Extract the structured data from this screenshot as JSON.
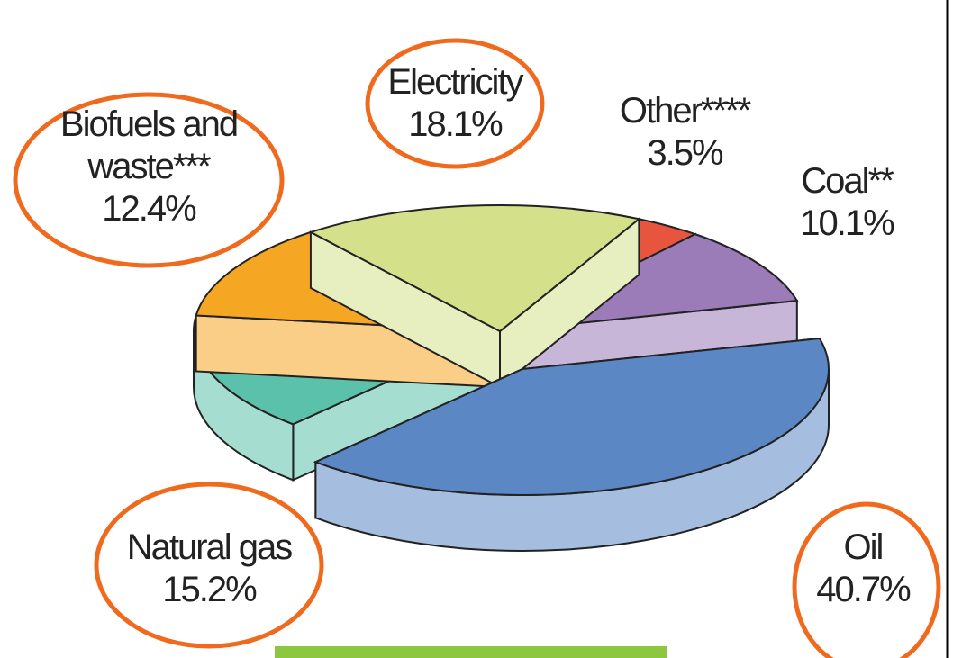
{
  "chart_data": {
    "type": "pie",
    "categories": [
      "Other****",
      "Coal**",
      "Oil",
      "Natural gas",
      "Biofuels and waste***",
      "Electricity"
    ],
    "values": [
      3.5,
      10.1,
      40.7,
      15.2,
      12.4,
      18.1
    ],
    "value_labels": [
      "3.5%",
      "10.1%",
      "40.7%",
      "15.2%",
      "12.4%",
      "18.1%"
    ],
    "colors": [
      "#e8553e",
      "#9b7bb8",
      "#5b87c5",
      "#5cc1aa",
      "#f5a623",
      "#d4e08a"
    ]
  }
}
